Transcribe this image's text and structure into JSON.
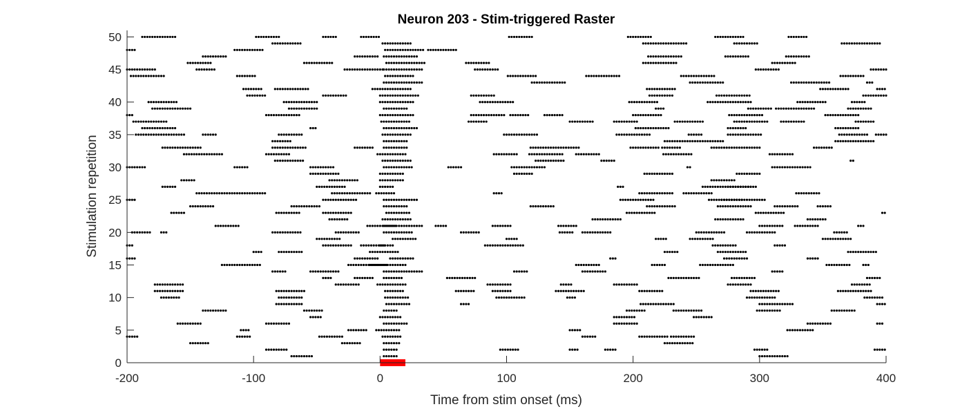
{
  "chart_data": {
    "type": "scatter",
    "title": "Neuron 203 - Stim-triggered Raster",
    "xlabel": "Time from stim onset (ms)",
    "ylabel": "Stimulation repetition",
    "xlim": [
      -200,
      400
    ],
    "ylim": [
      0,
      51
    ],
    "x_ticks": [
      "-200",
      "-100",
      "0",
      "100",
      "200",
      "300",
      "400"
    ],
    "y_ticks": [
      "0",
      "5",
      "10",
      "15",
      "20",
      "25",
      "30",
      "35",
      "40",
      "45",
      "50"
    ],
    "grid": false,
    "stimulus": {
      "start_ms": 0,
      "end_ms": 20,
      "color": "#ff0000"
    },
    "marker_color": "#000000",
    "bin_ms": 2,
    "burst_note": "Each row lists spike bursts as [start_ms, n_spikes]; spikes within a burst are spaced by bin_ms.",
    "rows": {
      "1": [
        [
          -70,
          9
        ],
        [
          3,
          6
        ],
        [
          300,
          12
        ]
      ],
      "2": [
        [
          -90,
          9
        ],
        [
          3,
          6
        ],
        [
          95,
          8
        ],
        [
          150,
          4
        ],
        [
          178,
          5
        ],
        [
          296,
          6
        ],
        [
          391,
          6
        ]
      ],
      "3": [
        [
          -150,
          8
        ],
        [
          -30,
          8
        ],
        [
          3,
          7
        ],
        [
          225,
          12
        ]
      ],
      "4": [
        [
          -200,
          5
        ],
        [
          -113,
          6
        ],
        [
          -48,
          10
        ],
        [
          2,
          8
        ],
        [
          160,
          6
        ],
        [
          205,
          12
        ],
        [
          230,
          10
        ]
      ],
      "5": [
        [
          -110,
          4
        ],
        [
          -25,
          8
        ],
        [
          -3,
          10
        ],
        [
          150,
          5
        ],
        [
          322,
          11
        ]
      ],
      "6": [
        [
          -160,
          10
        ],
        [
          -90,
          10
        ],
        [
          3,
          10
        ],
        [
          185,
          10
        ],
        [
          338,
          10
        ],
        [
          393,
          3
        ]
      ],
      "7": [
        [
          -55,
          5
        ],
        [
          0,
          9
        ],
        [
          185,
          9
        ],
        [
          248,
          8
        ]
      ],
      "8": [
        [
          -140,
          10
        ],
        [
          -60,
          8
        ],
        [
          3,
          6
        ],
        [
          195,
          8
        ],
        [
          232,
          12
        ],
        [
          298,
          10
        ],
        [
          357,
          10
        ]
      ],
      "9": [
        [
          -82,
          11
        ],
        [
          5,
          10
        ],
        [
          64,
          4
        ],
        [
          206,
          14
        ],
        [
          300,
          14
        ],
        [
          393,
          6
        ]
      ],
      "10": [
        [
          -173,
          8
        ],
        [
          -80,
          10
        ],
        [
          4,
          10
        ],
        [
          92,
          12
        ],
        [
          148,
          4
        ],
        [
          290,
          12
        ],
        [
          383,
          8
        ]
      ],
      "11": [
        [
          -178,
          12
        ],
        [
          -82,
          12
        ],
        [
          4,
          8
        ],
        [
          60,
          8
        ],
        [
          89,
          8
        ],
        [
          139,
          12
        ],
        [
          205,
          10
        ],
        [
          293,
          12
        ],
        [
          362,
          14
        ]
      ],
      "12": [
        [
          -178,
          12
        ],
        [
          -35,
          10
        ],
        [
          -2,
          12
        ],
        [
          85,
          10
        ],
        [
          143,
          5
        ],
        [
          185,
          10
        ],
        [
          275,
          10
        ],
        [
          373,
          8
        ]
      ],
      "13": [
        [
          -45,
          4
        ],
        [
          -20,
          8
        ],
        [
          3,
          8
        ],
        [
          53,
          12
        ],
        [
          228,
          13
        ],
        [
          278,
          10
        ],
        [
          385,
          6
        ]
      ],
      "14": [
        [
          -85,
          6
        ],
        [
          -55,
          12
        ],
        [
          3,
          16
        ],
        [
          106,
          6
        ],
        [
          160,
          10
        ],
        [
          310,
          5
        ]
      ],
      "15": [
        [
          -125,
          16
        ],
        [
          -25,
          16
        ],
        [
          -8,
          15
        ],
        [
          155,
          10
        ],
        [
          215,
          6
        ],
        [
          253,
          14
        ],
        [
          353,
          10
        ],
        [
          382,
          3
        ]
      ],
      "16": [
        [
          -200,
          4
        ],
        [
          -20,
          10
        ],
        [
          8,
          10
        ],
        [
          182,
          3
        ],
        [
          272,
          10
        ],
        [
          338,
          5
        ]
      ],
      "17": [
        [
          -100,
          4
        ],
        [
          -80,
          10
        ],
        [
          -8,
          12
        ],
        [
          225,
          6
        ],
        [
          267,
          12
        ],
        [
          370,
          12
        ]
      ],
      "18": [
        [
          -200,
          3
        ],
        [
          -45,
          12
        ],
        [
          -15,
          10
        ],
        [
          0,
          6
        ],
        [
          83,
          16
        ],
        [
          263,
          10
        ],
        [
          312,
          5
        ]
      ],
      "19": [
        [
          -50,
          10
        ],
        [
          10,
          10
        ],
        [
          100,
          5
        ],
        [
          218,
          5
        ],
        [
          245,
          10
        ],
        [
          350,
          12
        ]
      ],
      "20": [
        [
          -196,
          8
        ],
        [
          -173,
          3
        ],
        [
          -85,
          12
        ],
        [
          -35,
          10
        ],
        [
          3,
          12
        ],
        [
          64,
          8
        ],
        [
          142,
          6
        ],
        [
          160,
          12
        ],
        [
          250,
          12
        ],
        [
          290,
          12
        ],
        [
          359,
          6
        ]
      ],
      "21": [
        [
          -130,
          10
        ],
        [
          -10,
          12
        ],
        [
          3,
          16
        ],
        [
          44,
          5
        ],
        [
          89,
          8
        ],
        [
          141,
          8
        ],
        [
          300,
          10
        ],
        [
          328,
          10
        ],
        [
          378,
          3
        ]
      ],
      "22": [
        [
          -40,
          8
        ],
        [
          2,
          12
        ],
        [
          168,
          12
        ],
        [
          265,
          12
        ],
        [
          338,
          8
        ]
      ],
      "23": [
        [
          -165,
          6
        ],
        [
          -82,
          10
        ],
        [
          -45,
          12
        ],
        [
          5,
          10
        ],
        [
          195,
          12
        ],
        [
          297,
          12
        ],
        [
          397,
          3
        ]
      ],
      "24": [
        [
          -150,
          10
        ],
        [
          -70,
          12
        ],
        [
          3,
          10
        ],
        [
          119,
          10
        ],
        [
          211,
          12
        ],
        [
          267,
          14
        ],
        [
          312,
          10
        ],
        [
          346,
          6
        ]
      ],
      "25": [
        [
          -200,
          4
        ],
        [
          -45,
          14
        ],
        [
          3,
          14
        ],
        [
          190,
          14
        ],
        [
          260,
          14
        ],
        [
          270,
          18
        ]
      ],
      "26": [
        [
          -145,
          28
        ],
        [
          -38,
          16
        ],
        [
          -3,
          8
        ],
        [
          90,
          4
        ],
        [
          205,
          14
        ],
        [
          240,
          12
        ],
        [
          329,
          10
        ]
      ],
      "27": [
        [
          -172,
          6
        ],
        [
          -50,
          12
        ],
        [
          0,
          6
        ],
        [
          188,
          3
        ],
        [
          255,
          20
        ],
        [
          275,
          12
        ]
      ],
      "28": [
        [
          -157,
          6
        ],
        [
          -40,
          12
        ],
        [
          0,
          10
        ],
        [
          262,
          10
        ]
      ],
      "29": [
        [
          -55,
          12
        ],
        [
          0,
          10
        ],
        [
          106,
          8
        ],
        [
          209,
          12
        ],
        [
          282,
          10
        ]
      ],
      "30": [
        [
          -200,
          8
        ],
        [
          -115,
          6
        ],
        [
          -55,
          10
        ],
        [
          3,
          12
        ],
        [
          54,
          6
        ],
        [
          104,
          14
        ],
        [
          243,
          2
        ],
        [
          310,
          16
        ]
      ],
      "31": [
        [
          -83,
          12
        ],
        [
          2,
          12
        ],
        [
          123,
          12
        ],
        [
          175,
          6
        ],
        [
          372,
          2
        ]
      ],
      "32": [
        [
          -155,
          16
        ],
        [
          -90,
          10
        ],
        [
          -2,
          12
        ],
        [
          90,
          10
        ],
        [
          118,
          14
        ],
        [
          155,
          10
        ],
        [
          224,
          12
        ],
        [
          308,
          10
        ]
      ],
      "33": [
        [
          -172,
          16
        ],
        [
          -85,
          14
        ],
        [
          -20,
          8
        ],
        [
          3,
          10
        ],
        [
          119,
          20
        ],
        [
          198,
          12
        ],
        [
          223,
          8
        ],
        [
          262,
          20
        ],
        [
          343,
          8
        ]
      ],
      "34": [
        [
          -85,
          8
        ],
        [
          3,
          10
        ],
        [
          225,
          24
        ],
        [
          360,
          16
        ]
      ],
      "35": [
        [
          -193,
          20
        ],
        [
          -140,
          6
        ],
        [
          -80,
          10
        ],
        [
          2,
          12
        ],
        [
          98,
          14
        ],
        [
          187,
          14
        ],
        [
          244,
          6
        ],
        [
          275,
          14
        ],
        [
          363,
          12
        ],
        [
          392,
          12
        ]
      ],
      "36": [
        [
          -188,
          14
        ],
        [
          -55,
          3
        ],
        [
          3,
          14
        ],
        [
          202,
          14
        ],
        [
          275,
          8
        ],
        [
          360,
          10
        ]
      ],
      "37": [
        [
          -195,
          14
        ],
        [
          1,
          12
        ],
        [
          70,
          8
        ],
        [
          150,
          10
        ],
        [
          185,
          10
        ],
        [
          233,
          12
        ],
        [
          280,
          14
        ],
        [
          317,
          10
        ],
        [
          376,
          8
        ]
      ],
      "38": [
        [
          -200,
          3
        ],
        [
          -90,
          14
        ],
        [
          0,
          14
        ],
        [
          72,
          14
        ],
        [
          103,
          8
        ],
        [
          130,
          8
        ],
        [
          200,
          12
        ],
        [
          276,
          14
        ],
        [
          352,
          14
        ]
      ],
      "39": [
        [
          -180,
          16
        ],
        [
          -72,
          12
        ],
        [
          3,
          10
        ],
        [
          218,
          4
        ],
        [
          291,
          10
        ],
        [
          313,
          16
        ],
        [
          370,
          10
        ]
      ],
      "40": [
        [
          -183,
          12
        ],
        [
          -76,
          14
        ],
        [
          0,
          14
        ],
        [
          79,
          14
        ],
        [
          197,
          12
        ],
        [
          259,
          18
        ],
        [
          330,
          12
        ],
        [
          373,
          6
        ]
      ],
      "41": [
        [
          -105,
          8
        ],
        [
          -45,
          10
        ],
        [
          0,
          16
        ],
        [
          72,
          10
        ],
        [
          213,
          10
        ],
        [
          266,
          14
        ],
        [
          382,
          16
        ]
      ],
      "42": [
        [
          -108,
          8
        ],
        [
          -83,
          14
        ],
        [
          -6,
          16
        ],
        [
          211,
          12
        ],
        [
          348,
          12
        ],
        [
          393,
          4
        ]
      ],
      "43": [
        [
          3,
          16
        ],
        [
          120,
          14
        ],
        [
          245,
          14
        ],
        [
          325,
          16
        ],
        [
          385,
          3
        ]
      ],
      "44": [
        [
          -197,
          14
        ],
        [
          -113,
          8
        ],
        [
          4,
          12
        ],
        [
          101,
          12
        ],
        [
          163,
          14
        ],
        [
          238,
          14
        ],
        [
          364,
          10
        ]
      ],
      "45": [
        [
          -200,
          12
        ],
        [
          -145,
          8
        ],
        [
          -28,
          16
        ],
        [
          3,
          16
        ],
        [
          75,
          10
        ],
        [
          297,
          10
        ],
        [
          388,
          14
        ]
      ],
      "46": [
        [
          -152,
          10
        ],
        [
          -60,
          12
        ],
        [
          5,
          16
        ],
        [
          68,
          10
        ],
        [
          208,
          14
        ],
        [
          310,
          10
        ]
      ],
      "47": [
        [
          -140,
          10
        ],
        [
          -20,
          10
        ],
        [
          3,
          14
        ],
        [
          212,
          14
        ],
        [
          273,
          10
        ],
        [
          321,
          10
        ]
      ],
      "48": [
        [
          -200,
          4
        ],
        [
          -115,
          12
        ],
        [
          4,
          16
        ],
        [
          38,
          12
        ]
      ],
      "49": [
        [
          -85,
          12
        ],
        [
          2,
          12
        ],
        [
          208,
          18
        ],
        [
          280,
          10
        ],
        [
          365,
          16
        ]
      ],
      "50": [
        [
          -188,
          14
        ],
        [
          -98,
          10
        ],
        [
          -45,
          6
        ],
        [
          -15,
          8
        ],
        [
          102,
          10
        ],
        [
          196,
          10
        ],
        [
          265,
          12
        ],
        [
          323,
          8
        ]
      ]
    }
  }
}
